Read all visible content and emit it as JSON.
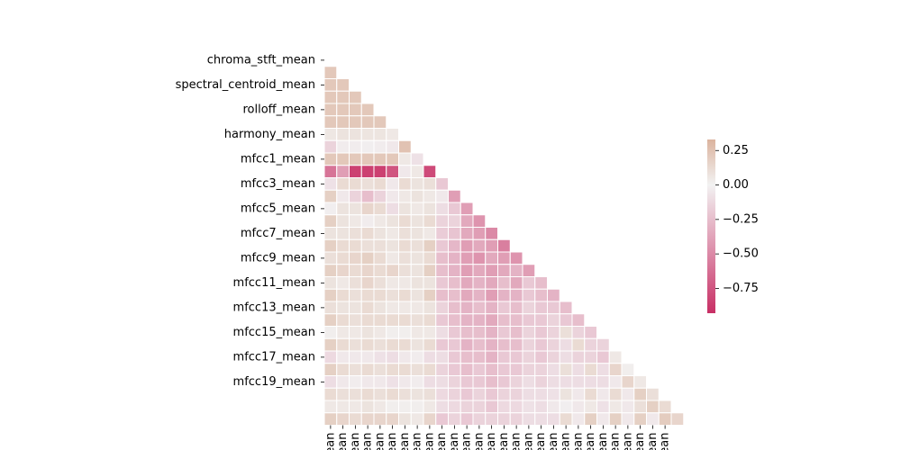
{
  "chart_data": {
    "type": "heatmap",
    "title": "",
    "mask": "upper-triangle-including-diagonal",
    "y_tick_labels_shown": [
      "chroma_stft_mean",
      "spectral_centroid_mean",
      "rolloff_mean",
      "harmony_mean",
      "mfcc1_mean",
      "mfcc3_mean",
      "mfcc5_mean",
      "mfcc7_mean",
      "mfcc9_mean",
      "mfcc11_mean",
      "mfcc13_mean",
      "mfcc15_mean",
      "mfcc17_mean",
      "mfcc19_mean"
    ],
    "x_tick_labels_shown": [
      "_mean",
      "_mean",
      "_mean",
      "_mean",
      "_mean",
      "_mean",
      "_mean",
      "_mean",
      "_mean",
      "_mean",
      "_mean",
      "_mean",
      "_mean",
      "_mean",
      "_mean",
      "_mean",
      "_mean",
      "_mean",
      "_mean",
      "_mean",
      "_mean",
      "_mean",
      "_mean",
      "_mean",
      "_mean",
      "_mean",
      "_mean",
      "_mean"
    ],
    "colorbar": {
      "min": -0.93,
      "max": 0.33,
      "ticks": [
        0.25,
        0.0,
        -0.25,
        -0.5,
        -0.75
      ],
      "tick_labels": [
        "0.25",
        "0.00",
        "−0.25",
        "−0.50",
        "−0.75"
      ],
      "neg_color": "#c82f65",
      "mid_color": "#f2f2f2",
      "pos_color": "#dbb39e"
    },
    "matrix": [
      [],
      [
        0.22
      ],
      [
        0.22,
        0.22
      ],
      [
        0.22,
        0.22,
        0.22
      ],
      [
        0.22,
        0.22,
        0.22,
        0.22
      ],
      [
        0.22,
        0.22,
        0.22,
        0.22,
        0.22
      ],
      [
        0.06,
        0.08,
        0.08,
        0.07,
        0.07,
        0.05
      ],
      [
        -0.15,
        -0.03,
        -0.03,
        -0.02,
        -0.03,
        -0.05,
        0.25
      ],
      [
        0.22,
        0.22,
        0.22,
        0.22,
        0.22,
        0.22,
        0.05,
        -0.08
      ],
      [
        -0.6,
        -0.4,
        -0.85,
        -0.85,
        -0.85,
        -0.75,
        -0.05,
        0.05,
        -0.8
      ],
      [
        -0.08,
        0.12,
        0.12,
        0.1,
        0.12,
        -0.05,
        0.12,
        0.08,
        0.1,
        -0.2
      ],
      [
        0.18,
        -0.05,
        -0.15,
        -0.25,
        -0.15,
        -0.05,
        0.05,
        0.08,
        0.05,
        -0.05,
        -0.4
      ],
      [
        -0.02,
        0.08,
        0.08,
        0.15,
        0.12,
        -0.1,
        0.08,
        0.05,
        0.08,
        -0.1,
        -0.2,
        -0.4
      ],
      [
        0.18,
        0.08,
        0.05,
        -0.03,
        0.05,
        0.08,
        0.12,
        0.08,
        0.12,
        -0.15,
        -0.15,
        -0.35,
        -0.45
      ],
      [
        0.08,
        0.08,
        0.1,
        0.12,
        0.08,
        0.05,
        0.1,
        0.08,
        0.05,
        -0.18,
        -0.22,
        -0.35,
        -0.4,
        -0.5
      ],
      [
        0.18,
        0.12,
        0.12,
        0.1,
        0.1,
        0.08,
        0.12,
        0.1,
        0.18,
        -0.2,
        -0.28,
        -0.4,
        -0.35,
        -0.4,
        -0.55
      ],
      [
        0.1,
        0.12,
        0.15,
        0.18,
        0.12,
        0.05,
        0.1,
        0.08,
        0.12,
        -0.25,
        -0.3,
        -0.4,
        -0.45,
        -0.35,
        -0.4,
        -0.45
      ],
      [
        0.18,
        0.15,
        0.12,
        0.15,
        0.12,
        0.15,
        0.1,
        0.08,
        0.18,
        -0.25,
        -0.3,
        -0.4,
        -0.35,
        -0.4,
        -0.35,
        -0.3,
        -0.4
      ],
      [
        0.08,
        0.05,
        0.1,
        0.15,
        0.1,
        0.05,
        0.05,
        0.08,
        0.08,
        -0.2,
        -0.25,
        -0.35,
        -0.3,
        -0.35,
        -0.25,
        -0.35,
        -0.2,
        -0.25
      ],
      [
        0.18,
        0.12,
        0.1,
        0.12,
        0.12,
        0.1,
        0.12,
        0.08,
        0.18,
        -0.25,
        -0.25,
        -0.35,
        -0.3,
        -0.4,
        -0.3,
        -0.3,
        -0.2,
        -0.25,
        -0.3
      ],
      [
        0.1,
        0.08,
        0.08,
        0.12,
        0.08,
        0.05,
        0.05,
        0.05,
        0.08,
        -0.15,
        -0.25,
        -0.3,
        -0.25,
        -0.3,
        -0.2,
        -0.25,
        -0.15,
        -0.2,
        -0.2,
        -0.25
      ],
      [
        0.18,
        0.12,
        0.1,
        0.12,
        0.12,
        0.12,
        0.12,
        0.1,
        0.12,
        -0.2,
        -0.25,
        -0.3,
        -0.3,
        -0.35,
        -0.25,
        -0.25,
        -0.2,
        -0.2,
        -0.15,
        -0.2,
        -0.25
      ],
      [
        0.02,
        0.05,
        0.05,
        0.08,
        0.05,
        0.02,
        0.02,
        0.05,
        0.05,
        -0.1,
        -0.2,
        -0.25,
        -0.25,
        -0.3,
        -0.2,
        -0.25,
        -0.15,
        -0.2,
        -0.15,
        0.1,
        -0.15,
        -0.2
      ],
      [
        0.18,
        0.12,
        0.1,
        0.12,
        0.1,
        0.12,
        0.12,
        0.08,
        0.12,
        -0.2,
        -0.2,
        -0.3,
        -0.25,
        -0.3,
        -0.25,
        -0.25,
        -0.15,
        -0.2,
        -0.15,
        -0.1,
        0.12,
        -0.15,
        -0.15
      ],
      [
        -0.12,
        -0.05,
        -0.05,
        -0.05,
        -0.08,
        -0.1,
        -0.05,
        -0.03,
        -0.1,
        -0.1,
        -0.2,
        -0.25,
        -0.25,
        -0.3,
        -0.2,
        -0.2,
        -0.15,
        -0.2,
        -0.15,
        -0.1,
        -0.15,
        -0.15,
        -0.2,
        0.05
      ],
      [
        0.18,
        0.12,
        0.1,
        0.12,
        0.1,
        0.12,
        0.12,
        0.1,
        0.12,
        -0.15,
        -0.2,
        -0.25,
        -0.2,
        -0.25,
        -0.2,
        -0.2,
        -0.15,
        -0.15,
        -0.1,
        0.1,
        -0.1,
        0.12,
        -0.1,
        0.15,
        0.02
      ],
      [
        -0.1,
        -0.05,
        -0.03,
        -0.05,
        -0.05,
        -0.08,
        -0.05,
        -0.03,
        -0.1,
        -0.1,
        -0.15,
        -0.2,
        -0.2,
        -0.25,
        -0.2,
        -0.15,
        -0.1,
        -0.15,
        -0.1,
        -0.1,
        -0.1,
        -0.1,
        -0.1,
        -0.05,
        0.15,
        0.05
      ],
      [
        0.12,
        0.1,
        0.1,
        0.12,
        0.1,
        0.12,
        0.1,
        0.08,
        0.1,
        -0.12,
        -0.15,
        -0.2,
        -0.15,
        -0.2,
        -0.15,
        -0.15,
        -0.1,
        -0.1,
        -0.08,
        0.08,
        -0.05,
        0.12,
        -0.05,
        0.12,
        -0.05,
        0.18,
        0.1
      ],
      [
        0.05,
        0.05,
        0.05,
        0.08,
        0.05,
        0.02,
        0.02,
        0.02,
        0.05,
        -0.1,
        -0.12,
        -0.15,
        -0.15,
        -0.2,
        -0.12,
        -0.12,
        -0.08,
        -0.1,
        -0.05,
        -0.02,
        -0.05,
        0.05,
        -0.08,
        0.05,
        -0.05,
        0.1,
        0.18,
        0.12
      ],
      [
        0.18,
        0.15,
        0.12,
        0.15,
        0.15,
        0.15,
        0.08,
        0.05,
        0.15,
        -0.2,
        -0.15,
        -0.2,
        -0.15,
        -0.15,
        -0.15,
        -0.15,
        -0.1,
        -0.1,
        -0.1,
        0.12,
        -0.05,
        0.18,
        -0.05,
        0.18,
        -0.05,
        0.18,
        -0.05,
        0.2,
        0.15
      ]
    ]
  }
}
